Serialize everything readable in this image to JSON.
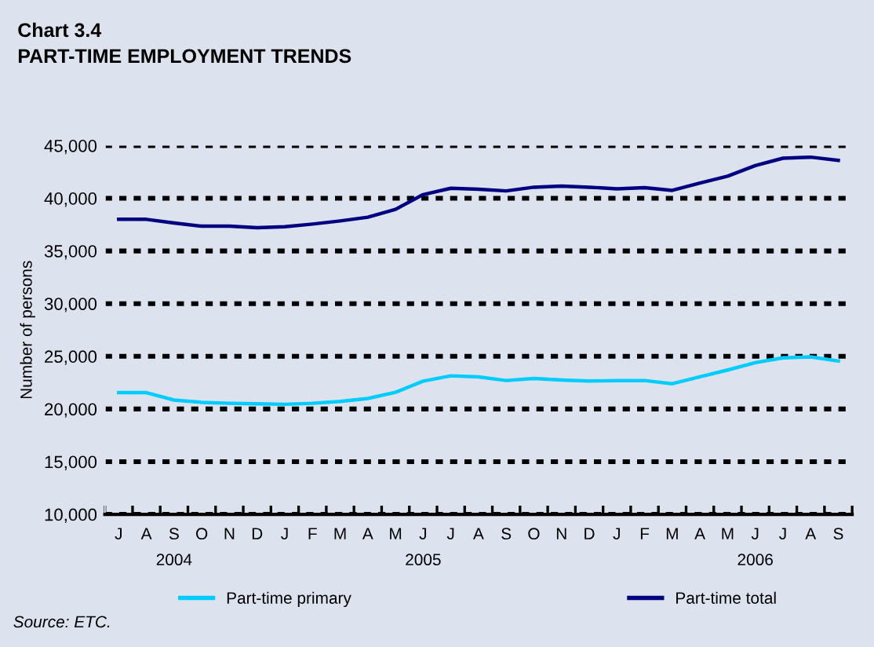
{
  "chart_data": {
    "type": "line",
    "title": "Chart 3.4",
    "subtitle": "PART-TIME EMPLOYMENT TRENDS",
    "ylabel": "Number of persons",
    "categories": [
      "J",
      "A",
      "S\n2004",
      "O",
      "N",
      "D",
      "J",
      "F",
      "M",
      "A",
      "M",
      "J\n2005",
      "J",
      "A",
      "S",
      "O",
      "N",
      "D",
      "J",
      "F",
      "M",
      "A",
      "M",
      "J\n2006",
      "J",
      "A",
      "S"
    ],
    "series": [
      {
        "name": "Part-time primary",
        "color": "#00ccff",
        "values": [
          21550,
          21550,
          20850,
          20630,
          20540,
          20500,
          20450,
          20540,
          20720,
          21000,
          21580,
          22650,
          23150,
          23050,
          22700,
          22900,
          22750,
          22650,
          22700,
          22700,
          22400,
          23050,
          23700,
          24400,
          24850,
          24950,
          24550
        ]
      },
      {
        "name": "Part-time total",
        "color": "#000080",
        "values": [
          38000,
          38000,
          37650,
          37350,
          37350,
          37200,
          37300,
          37550,
          37850,
          38200,
          38950,
          40350,
          40950,
          40850,
          40700,
          41050,
          41150,
          41050,
          40900,
          41000,
          40750,
          41450,
          42100,
          43100,
          43800,
          43900,
          43600
        ]
      }
    ],
    "ylim": [
      10000,
      45000
    ],
    "yticks": [
      {
        "value": 10000,
        "label": "10,000"
      },
      {
        "value": 15000,
        "label": "15,000"
      },
      {
        "value": 20000,
        "label": "20,000"
      },
      {
        "value": 25000,
        "label": "25,000"
      },
      {
        "value": 30000,
        "label": "30,000"
      },
      {
        "value": 35000,
        "label": "35,000"
      },
      {
        "value": 40000,
        "label": "40,000"
      },
      {
        "value": 45000,
        "label": "45,000"
      }
    ],
    "grid": "y",
    "legend": "bottom",
    "marker": "none",
    "line_style": "solid",
    "annotations": [
      "Source: ETC."
    ]
  }
}
